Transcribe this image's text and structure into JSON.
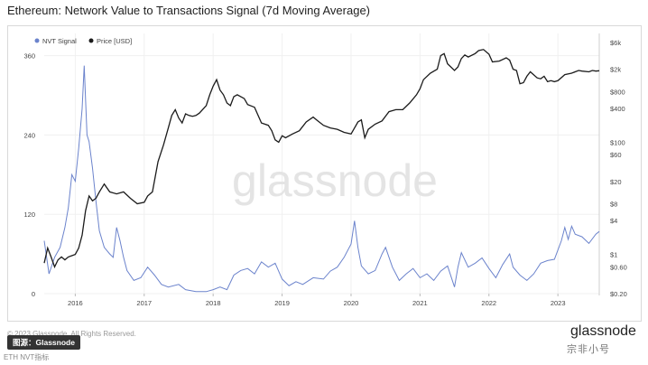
{
  "page": {
    "title": "Ethereum: Network Value to Transactions Signal (7d Moving Average)",
    "footer": "© 2023 Glassnode. All Rights Reserved.",
    "source_badge": "图源：Glassnode",
    "caption": "ETH NVT指标",
    "brand": "glassnode",
    "watermark": "glassnode",
    "site_mark": "宗非小号"
  },
  "colors": {
    "nvt": "#6b83cc",
    "price": "#1b1b1b",
    "grid": "#f0f0f0",
    "axis_text": "#444444",
    "watermark": "#e4e4e4"
  },
  "chart_data": {
    "type": "line",
    "title": "Ethereum: Network Value to Transactions Signal (7d Moving Average)",
    "legend": [
      "NVT Signal",
      "Price [USD]"
    ],
    "legend_position": "top-left",
    "x_range": [
      2015.55,
      2023.6
    ],
    "x_ticks": [
      {
        "label": "2016",
        "value": 2016.0
      },
      {
        "label": "2017",
        "value": 2017.0
      },
      {
        "label": "2018",
        "value": 2018.0
      },
      {
        "label": "2019",
        "value": 2019.0
      },
      {
        "label": "2020",
        "value": 2020.0
      },
      {
        "label": "2021",
        "value": 2021.0
      },
      {
        "label": "2022",
        "value": 2022.0
      },
      {
        "label": "2023",
        "value": 2023.0
      }
    ],
    "y_left": {
      "label": "NVT Signal",
      "ticks": [
        0,
        120,
        240,
        360
      ],
      "range": [
        0,
        380
      ]
    },
    "y_right": {
      "label": "Price [USD]",
      "scale": "log",
      "ticks": [
        {
          "label": "$0.20",
          "value": 0.2
        },
        {
          "label": "$0.60",
          "value": 0.6
        },
        {
          "label": "$1",
          "value": 1
        },
        {
          "label": "$4",
          "value": 4
        },
        {
          "label": "$8",
          "value": 8
        },
        {
          "label": "$20",
          "value": 20
        },
        {
          "label": "$60",
          "value": 60
        },
        {
          "label": "$100",
          "value": 100
        },
        {
          "label": "$400",
          "value": 400
        },
        {
          "label": "$800",
          "value": 800
        },
        {
          "label": "$2k",
          "value": 2000
        },
        {
          "label": "$6k",
          "value": 6000
        }
      ],
      "range": [
        0.2,
        6000
      ]
    },
    "series": [
      {
        "name": "NVT Signal",
        "axis": "left",
        "points": [
          [
            2015.55,
            80
          ],
          [
            2015.62,
            30
          ],
          [
            2015.7,
            55
          ],
          [
            2015.78,
            70
          ],
          [
            2015.85,
            100
          ],
          [
            2015.9,
            130
          ],
          [
            2015.95,
            180
          ],
          [
            2016.0,
            170
          ],
          [
            2016.05,
            220
          ],
          [
            2016.1,
            280
          ],
          [
            2016.13,
            345
          ],
          [
            2016.17,
            240
          ],
          [
            2016.2,
            230
          ],
          [
            2016.25,
            190
          ],
          [
            2016.3,
            140
          ],
          [
            2016.35,
            95
          ],
          [
            2016.42,
            70
          ],
          [
            2016.5,
            60
          ],
          [
            2016.55,
            55
          ],
          [
            2016.6,
            100
          ],
          [
            2016.65,
            80
          ],
          [
            2016.7,
            55
          ],
          [
            2016.75,
            35
          ],
          [
            2016.85,
            20
          ],
          [
            2016.95,
            24
          ],
          [
            2017.05,
            40
          ],
          [
            2017.15,
            28
          ],
          [
            2017.25,
            14
          ],
          [
            2017.35,
            10
          ],
          [
            2017.5,
            14
          ],
          [
            2017.6,
            6
          ],
          [
            2017.75,
            3
          ],
          [
            2017.9,
            3
          ],
          [
            2018.0,
            6
          ],
          [
            2018.1,
            10
          ],
          [
            2018.2,
            6
          ],
          [
            2018.3,
            28
          ],
          [
            2018.4,
            35
          ],
          [
            2018.5,
            38
          ],
          [
            2018.6,
            30
          ],
          [
            2018.7,
            48
          ],
          [
            2018.8,
            40
          ],
          [
            2018.9,
            46
          ],
          [
            2019.0,
            22
          ],
          [
            2019.1,
            12
          ],
          [
            2019.2,
            18
          ],
          [
            2019.3,
            14
          ],
          [
            2019.45,
            24
          ],
          [
            2019.6,
            22
          ],
          [
            2019.7,
            34
          ],
          [
            2019.8,
            40
          ],
          [
            2019.9,
            55
          ],
          [
            2020.0,
            75
          ],
          [
            2020.05,
            110
          ],
          [
            2020.1,
            70
          ],
          [
            2020.15,
            42
          ],
          [
            2020.25,
            30
          ],
          [
            2020.35,
            35
          ],
          [
            2020.45,
            60
          ],
          [
            2020.5,
            70
          ],
          [
            2020.6,
            40
          ],
          [
            2020.7,
            20
          ],
          [
            2020.8,
            30
          ],
          [
            2020.9,
            38
          ],
          [
            2021.0,
            24
          ],
          [
            2021.1,
            30
          ],
          [
            2021.2,
            20
          ],
          [
            2021.3,
            34
          ],
          [
            2021.4,
            42
          ],
          [
            2021.5,
            10
          ],
          [
            2021.55,
            40
          ],
          [
            2021.6,
            62
          ],
          [
            2021.7,
            40
          ],
          [
            2021.8,
            46
          ],
          [
            2021.9,
            54
          ],
          [
            2022.0,
            38
          ],
          [
            2022.1,
            24
          ],
          [
            2022.2,
            44
          ],
          [
            2022.3,
            60
          ],
          [
            2022.35,
            40
          ],
          [
            2022.45,
            28
          ],
          [
            2022.55,
            20
          ],
          [
            2022.65,
            30
          ],
          [
            2022.75,
            46
          ],
          [
            2022.85,
            50
          ],
          [
            2022.95,
            52
          ],
          [
            2023.05,
            80
          ],
          [
            2023.1,
            100
          ],
          [
            2023.15,
            82
          ],
          [
            2023.2,
            102
          ],
          [
            2023.25,
            90
          ],
          [
            2023.35,
            86
          ],
          [
            2023.45,
            76
          ],
          [
            2023.55,
            90
          ],
          [
            2023.6,
            94
          ]
        ]
      },
      {
        "name": "Price [USD]",
        "axis": "right",
        "points": [
          [
            2015.55,
            0.7
          ],
          [
            2015.6,
            1.3
          ],
          [
            2015.65,
            0.9
          ],
          [
            2015.7,
            0.6
          ],
          [
            2015.75,
            0.8
          ],
          [
            2015.8,
            0.9
          ],
          [
            2015.85,
            0.8
          ],
          [
            2015.9,
            0.9
          ],
          [
            2015.95,
            0.95
          ],
          [
            2016.0,
            1.0
          ],
          [
            2016.05,
            1.3
          ],
          [
            2016.1,
            2.2
          ],
          [
            2016.15,
            6.0
          ],
          [
            2016.2,
            11
          ],
          [
            2016.25,
            9
          ],
          [
            2016.3,
            10
          ],
          [
            2016.35,
            13
          ],
          [
            2016.42,
            18
          ],
          [
            2016.5,
            13
          ],
          [
            2016.6,
            12
          ],
          [
            2016.7,
            13
          ],
          [
            2016.8,
            10
          ],
          [
            2016.9,
            8
          ],
          [
            2017.0,
            8.5
          ],
          [
            2017.05,
            11
          ],
          [
            2017.12,
            13
          ],
          [
            2017.2,
            45
          ],
          [
            2017.28,
            90
          ],
          [
            2017.35,
            180
          ],
          [
            2017.4,
            300
          ],
          [
            2017.45,
            380
          ],
          [
            2017.5,
            270
          ],
          [
            2017.55,
            220
          ],
          [
            2017.6,
            320
          ],
          [
            2017.65,
            300
          ],
          [
            2017.7,
            290
          ],
          [
            2017.75,
            300
          ],
          [
            2017.8,
            330
          ],
          [
            2017.9,
            450
          ],
          [
            2017.95,
            700
          ],
          [
            2018.0,
            1000
          ],
          [
            2018.05,
            1300
          ],
          [
            2018.1,
            850
          ],
          [
            2018.15,
            700
          ],
          [
            2018.2,
            500
          ],
          [
            2018.25,
            450
          ],
          [
            2018.3,
            650
          ],
          [
            2018.35,
            700
          ],
          [
            2018.45,
            600
          ],
          [
            2018.5,
            470
          ],
          [
            2018.6,
            420
          ],
          [
            2018.7,
            220
          ],
          [
            2018.8,
            200
          ],
          [
            2018.85,
            160
          ],
          [
            2018.9,
            110
          ],
          [
            2018.95,
            100
          ],
          [
            2019.0,
            130
          ],
          [
            2019.05,
            120
          ],
          [
            2019.15,
            140
          ],
          [
            2019.25,
            160
          ],
          [
            2019.35,
            230
          ],
          [
            2019.45,
            280
          ],
          [
            2019.5,
            250
          ],
          [
            2019.6,
            200
          ],
          [
            2019.7,
            180
          ],
          [
            2019.8,
            170
          ],
          [
            2019.9,
            150
          ],
          [
            2020.0,
            140
          ],
          [
            2020.1,
            230
          ],
          [
            2020.15,
            250
          ],
          [
            2020.2,
            120
          ],
          [
            2020.25,
            170
          ],
          [
            2020.35,
            210
          ],
          [
            2020.45,
            240
          ],
          [
            2020.55,
            350
          ],
          [
            2020.65,
            380
          ],
          [
            2020.75,
            380
          ],
          [
            2020.85,
            500
          ],
          [
            2020.95,
            700
          ],
          [
            2021.0,
            900
          ],
          [
            2021.05,
            1300
          ],
          [
            2021.15,
            1700
          ],
          [
            2021.25,
            2000
          ],
          [
            2021.3,
            3500
          ],
          [
            2021.35,
            3800
          ],
          [
            2021.4,
            2500
          ],
          [
            2021.5,
            1900
          ],
          [
            2021.55,
            2200
          ],
          [
            2021.6,
            3100
          ],
          [
            2021.65,
            3600
          ],
          [
            2021.7,
            3300
          ],
          [
            2021.8,
            3800
          ],
          [
            2021.85,
            4300
          ],
          [
            2021.92,
            4500
          ],
          [
            2022.0,
            3700
          ],
          [
            2022.05,
            2700
          ],
          [
            2022.15,
            2800
          ],
          [
            2022.25,
            3200
          ],
          [
            2022.3,
            2900
          ],
          [
            2022.35,
            2000
          ],
          [
            2022.4,
            1900
          ],
          [
            2022.45,
            1100
          ],
          [
            2022.5,
            1150
          ],
          [
            2022.55,
            1500
          ],
          [
            2022.6,
            1800
          ],
          [
            2022.7,
            1400
          ],
          [
            2022.75,
            1350
          ],
          [
            2022.8,
            1500
          ],
          [
            2022.85,
            1200
          ],
          [
            2022.9,
            1250
          ],
          [
            2022.95,
            1200
          ],
          [
            2023.0,
            1250
          ],
          [
            2023.1,
            1600
          ],
          [
            2023.2,
            1700
          ],
          [
            2023.3,
            1900
          ],
          [
            2023.35,
            1850
          ],
          [
            2023.45,
            1800
          ],
          [
            2023.5,
            1900
          ],
          [
            2023.55,
            1850
          ],
          [
            2023.6,
            1880
          ]
        ]
      }
    ]
  }
}
